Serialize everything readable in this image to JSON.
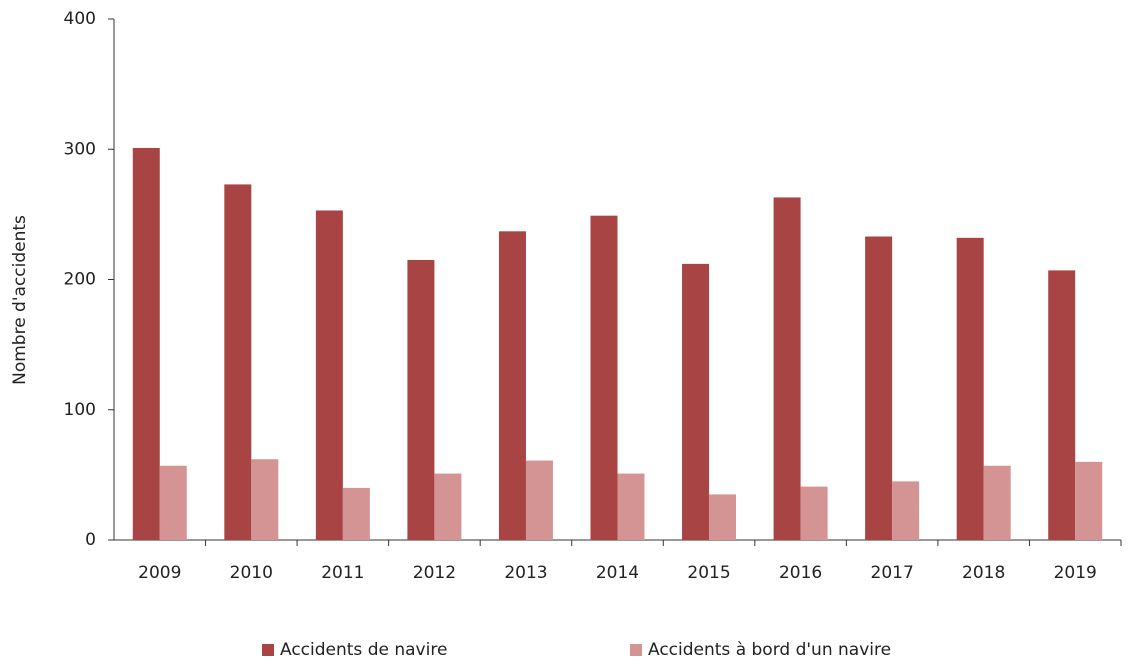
{
  "chart_data": {
    "type": "bar",
    "y_label": "Nombre d'accidents",
    "categories": [
      "2009",
      "2010",
      "2011",
      "2012",
      "2013",
      "2014",
      "2015",
      "2016",
      "2017",
      "2018",
      "2019"
    ],
    "series": [
      {
        "name": "Accidents de navire",
        "color": "#a84444",
        "values": [
          301,
          273,
          253,
          215,
          237,
          249,
          212,
          263,
          233,
          232,
          207
        ]
      },
      {
        "name": "Accidents à bord d'un navire",
        "color": "#d49494",
        "values": [
          57,
          62,
          40,
          51,
          61,
          51,
          35,
          41,
          45,
          57,
          60
        ]
      }
    ],
    "ylim": [
      0,
      400
    ],
    "yticks": [
      0,
      100,
      200,
      300,
      400
    ],
    "legend": "bottom"
  }
}
